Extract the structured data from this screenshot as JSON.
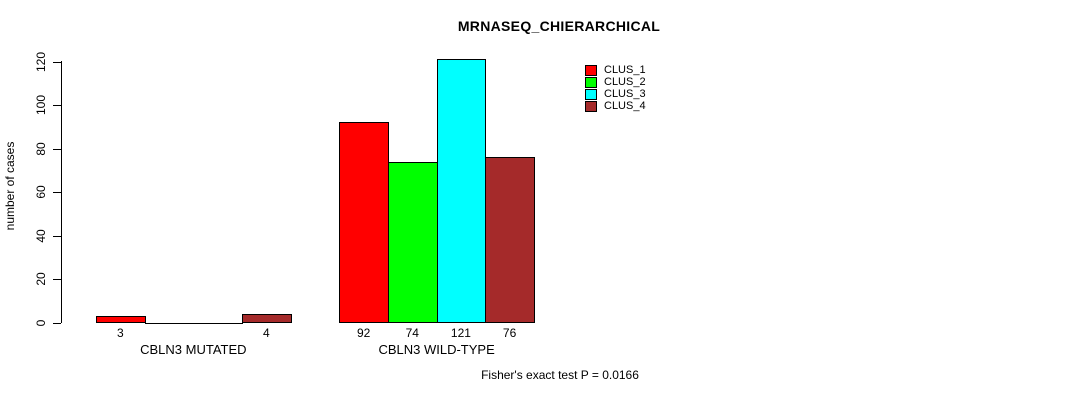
{
  "title": "MRNASEQ_CHIERARCHICAL",
  "footer": "Fisher's exact test P = 0.0166",
  "chart_data": {
    "type": "bar",
    "title": "MRNASEQ_CHIERARCHICAL",
    "ylabel": "number of cases",
    "xlabel": "",
    "ylim": [
      0,
      120
    ],
    "yticks": [
      0,
      20,
      40,
      60,
      80,
      100,
      120
    ],
    "grid": false,
    "legend_position": "inside-top-right",
    "categories": [
      "CBLN3 MUTATED",
      "CBLN3 WILD-TYPE"
    ],
    "series": [
      {
        "name": "CLUS_1",
        "color": "#FF0000",
        "values": [
          3,
          92
        ]
      },
      {
        "name": "CLUS_2",
        "color": "#00FF00",
        "values": [
          0,
          74
        ]
      },
      {
        "name": "CLUS_3",
        "color": "#00FFFF",
        "values": [
          0,
          121
        ]
      },
      {
        "name": "CLUS_4",
        "color": "#A52A2A",
        "values": [
          4,
          76
        ]
      }
    ],
    "bar_value_labels": [
      "3",
      "92",
      "74",
      "121",
      "4",
      "76"
    ],
    "annotation": "Fisher's exact test P = 0.0166",
    "axis_color": "#000000",
    "bar_border_color": "#000000"
  }
}
